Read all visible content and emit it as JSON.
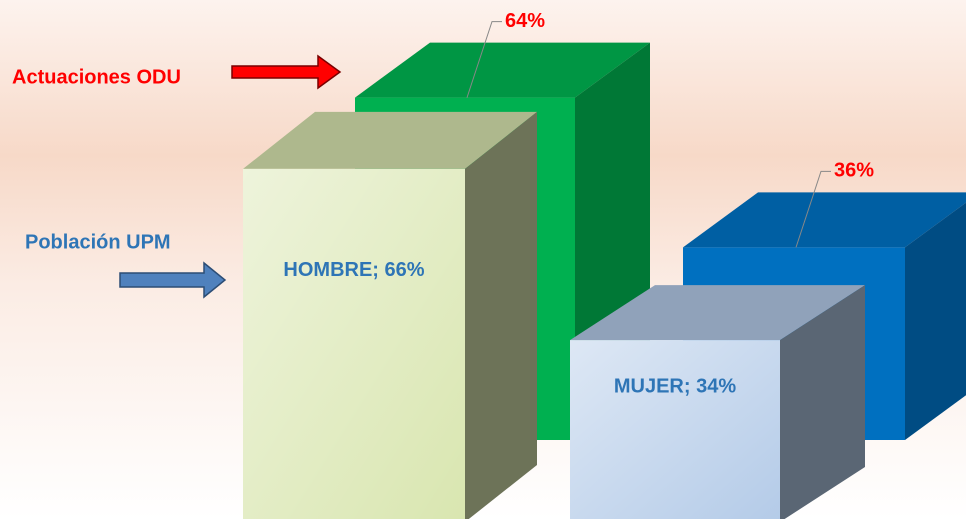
{
  "chart_data": {
    "type": "bar3d",
    "series": [
      {
        "name": "Actuaciones ODU",
        "colors": [
          "#00b050",
          "#0070c0"
        ],
        "values": [
          64,
          36
        ],
        "value_labels": [
          "64%",
          "36%"
        ]
      },
      {
        "name": "Población UPM",
        "colors": [
          "#d9e6b0",
          "#b4cbe8"
        ],
        "values": [
          66,
          34
        ],
        "value_labels": [
          "HOMBRE; 66%",
          "MUJER; 34%"
        ]
      }
    ]
  }
}
